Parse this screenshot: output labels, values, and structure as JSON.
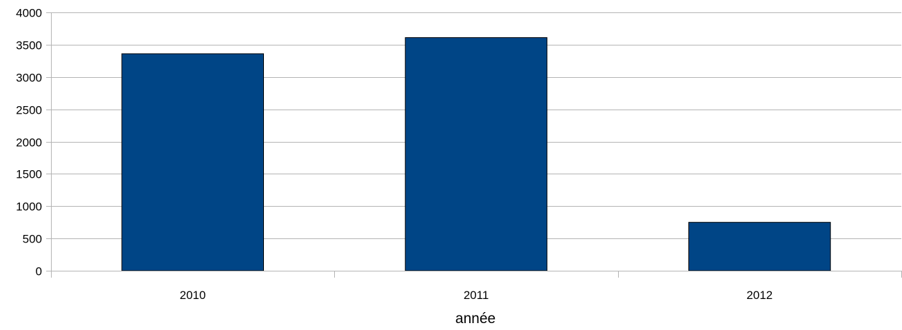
{
  "chart_data": {
    "type": "bar",
    "title": "",
    "xlabel": "année",
    "ylabel": "",
    "categories": [
      "2010",
      "2011",
      "2012"
    ],
    "series": [
      {
        "values": [
          3360,
          3610,
          750
        ]
      }
    ],
    "ylim": [
      0,
      4000
    ],
    "yticks": [
      0,
      500,
      1000,
      1500,
      2000,
      2500,
      3000,
      3500,
      4000
    ],
    "grid": true,
    "legend": "none",
    "bar_color": "#004586",
    "grid_color": "#b3b3b3"
  }
}
